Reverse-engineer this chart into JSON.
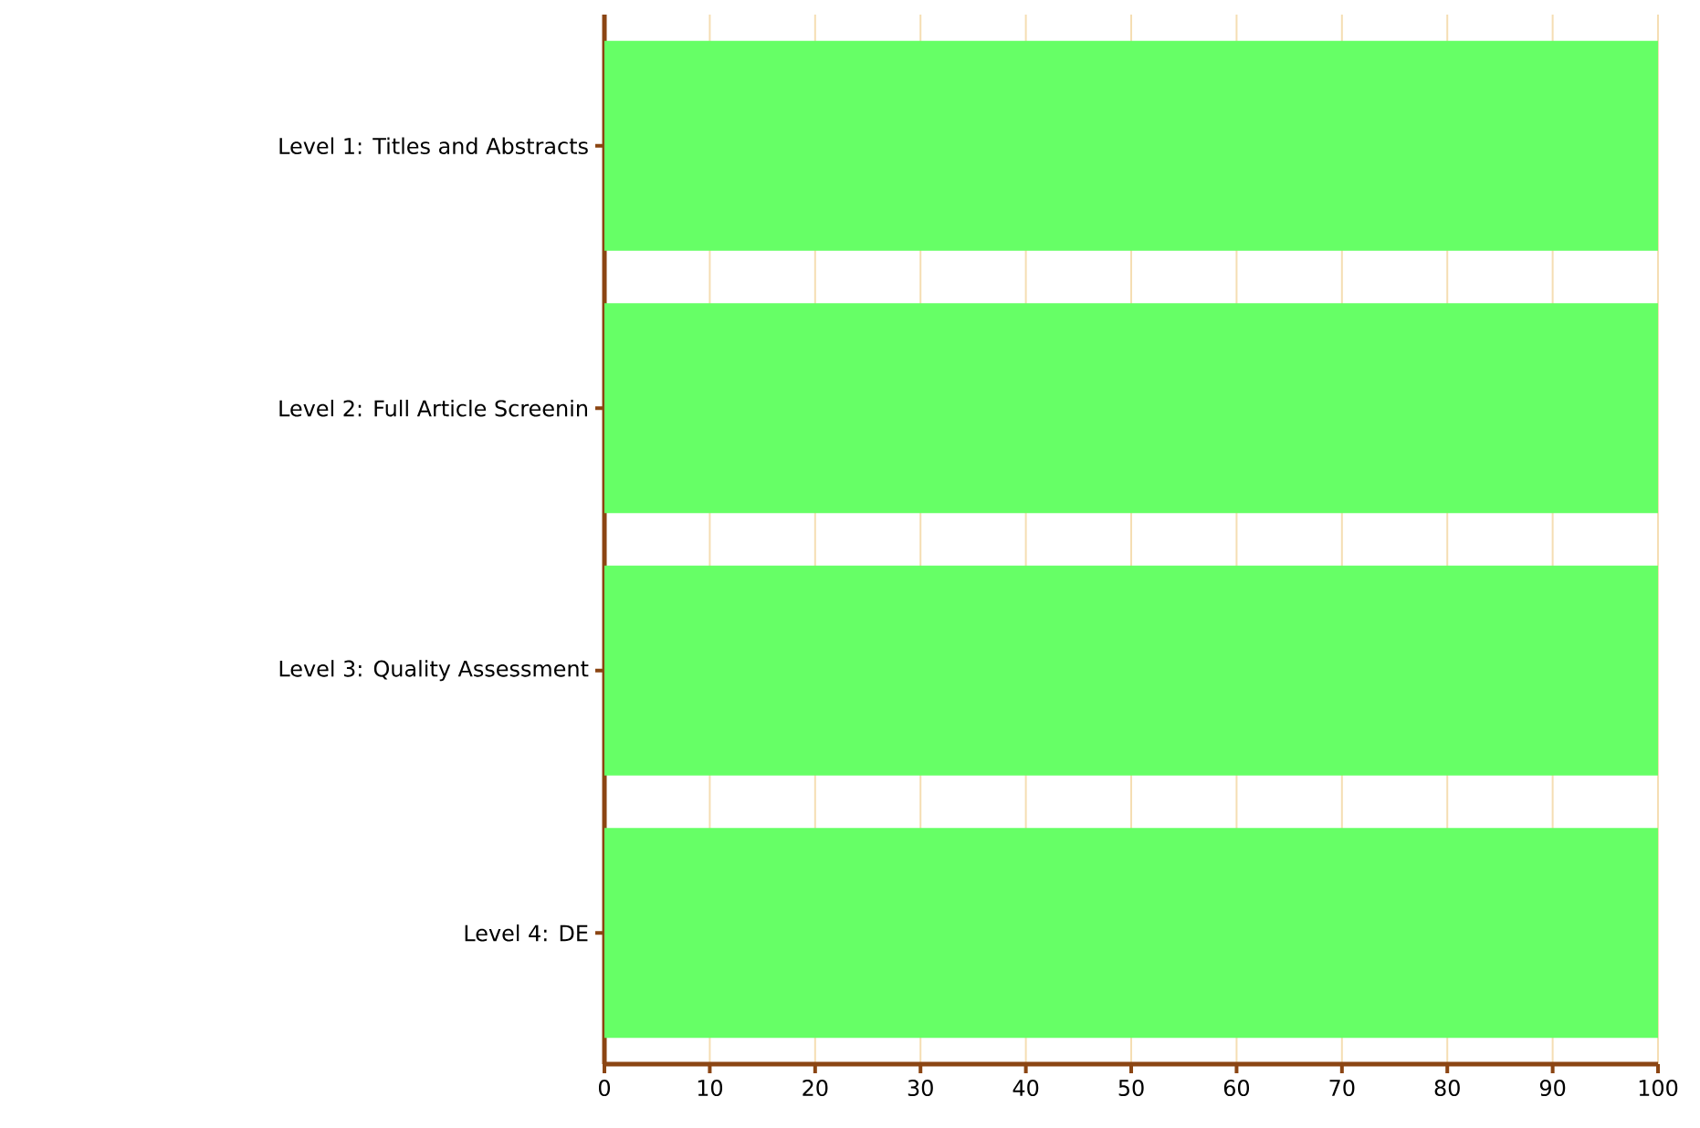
{
  "chart_data": {
    "type": "bar",
    "orientation": "horizontal",
    "categories": [
      "Level 1: Titles and Abstracts",
      "Level 2: Full Article Screenin",
      "Level 3: Quality Assessment",
      "Level 4: DE"
    ],
    "values": [
      100,
      100,
      100,
      100
    ],
    "color": "#66ff66",
    "xlim": [
      0,
      100
    ],
    "xticks": [
      0,
      10,
      20,
      30,
      40,
      50,
      60,
      70,
      80,
      90,
      100
    ],
    "grid": "x"
  }
}
